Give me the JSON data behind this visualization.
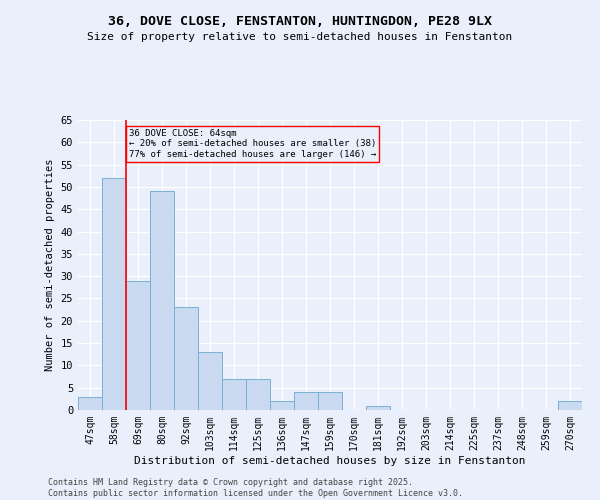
{
  "title": "36, DOVE CLOSE, FENSTANTON, HUNTINGDON, PE28 9LX",
  "subtitle": "Size of property relative to semi-detached houses in Fenstanton",
  "xlabel": "Distribution of semi-detached houses by size in Fenstanton",
  "ylabel": "Number of semi-detached properties",
  "bins": [
    "47sqm",
    "58sqm",
    "69sqm",
    "80sqm",
    "92sqm",
    "103sqm",
    "114sqm",
    "125sqm",
    "136sqm",
    "147sqm",
    "159sqm",
    "170sqm",
    "181sqm",
    "192sqm",
    "203sqm",
    "214sqm",
    "225sqm",
    "237sqm",
    "248sqm",
    "259sqm",
    "270sqm"
  ],
  "values": [
    3,
    52,
    29,
    49,
    23,
    13,
    7,
    7,
    2,
    4,
    4,
    0,
    1,
    0,
    0,
    0,
    0,
    0,
    0,
    0,
    2
  ],
  "bar_color": "#c8d9f0",
  "bar_edge_color": "#7aafd4",
  "red_line_x": 1.5,
  "annotation_title": "36 DOVE CLOSE: 64sqm",
  "annotation_line1": "← 20% of semi-detached houses are smaller (38)",
  "annotation_line2": "77% of semi-detached houses are larger (146) →",
  "ylim": [
    0,
    65
  ],
  "yticks": [
    0,
    5,
    10,
    15,
    20,
    25,
    30,
    35,
    40,
    45,
    50,
    55,
    60,
    65
  ],
  "background_color": "#eaf0fb",
  "grid_color": "#ffffff",
  "footer_line1": "Contains HM Land Registry data © Crown copyright and database right 2025.",
  "footer_line2": "Contains public sector information licensed under the Open Government Licence v3.0."
}
